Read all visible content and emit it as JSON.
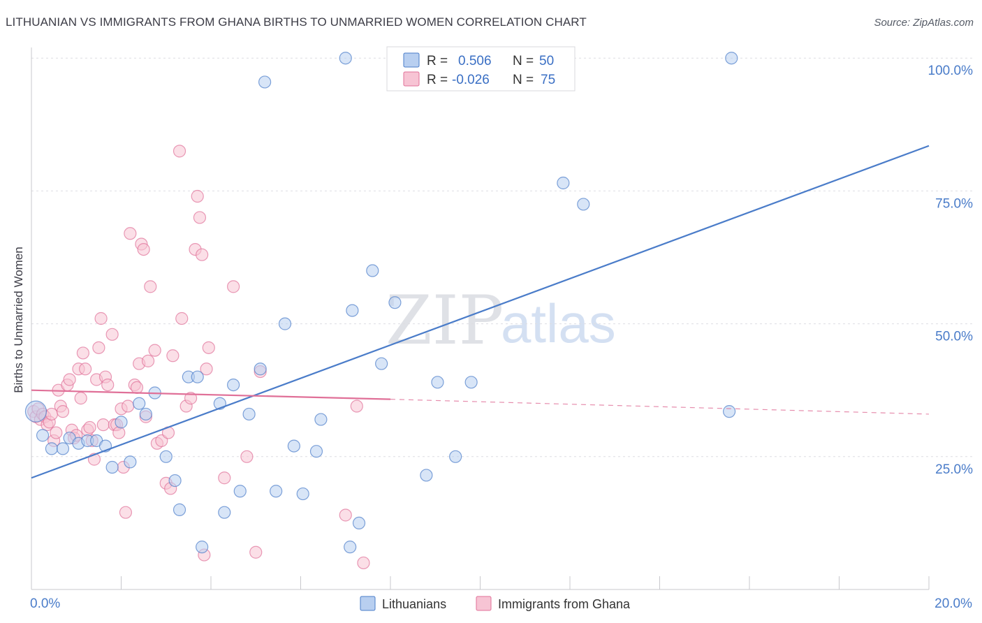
{
  "header": {
    "title": "LITHUANIAN VS IMMIGRANTS FROM GHANA BIRTHS TO UNMARRIED WOMEN CORRELATION CHART",
    "source": "Source: ZipAtlas.com"
  },
  "watermark": {
    "part1": "ZIP",
    "part2": "atlas"
  },
  "chart_data": {
    "type": "scatter",
    "title": "LITHUANIAN VS IMMIGRANTS FROM GHANA BIRTHS TO UNMARRIED WOMEN CORRELATION CHART",
    "ylabel": "Births to Unmarried Women",
    "xlabel": "",
    "xlim": [
      0,
      20
    ],
    "ylim": [
      0,
      102
    ],
    "x_tick_labels": {
      "left": "0.0%",
      "right": "20.0%"
    },
    "y_ticks": [
      {
        "value": 25,
        "label": "25.0%"
      },
      {
        "value": 50,
        "label": "50.0%"
      },
      {
        "value": 75,
        "label": "75.0%"
      },
      {
        "value": 100,
        "label": "100.0%"
      }
    ],
    "grid": true,
    "legend_position": "top-center",
    "legend": [
      {
        "series": "Lithuanians",
        "r_label": "R =",
        "r_value": "0.506",
        "n_label": "N =",
        "n_value": "50"
      },
      {
        "series": "Immigrants from Ghana",
        "r_label": "R =",
        "r_value": "-0.026",
        "n_label": "N =",
        "n_value": "75"
      }
    ],
    "series": [
      {
        "name": "Lithuanians",
        "color": "#4a7cc9",
        "fill": "#b8cff0",
        "trend": {
          "x": [
            0,
            20
          ],
          "y": [
            21,
            83.5
          ],
          "style": "solid"
        },
        "points": [
          {
            "x": 0.1,
            "y": 33.5,
            "big": true
          },
          {
            "x": 0.25,
            "y": 29
          },
          {
            "x": 0.45,
            "y": 26.5
          },
          {
            "x": 0.7,
            "y": 26.5
          },
          {
            "x": 0.85,
            "y": 28.5
          },
          {
            "x": 1.05,
            "y": 27.5
          },
          {
            "x": 1.25,
            "y": 28
          },
          {
            "x": 1.45,
            "y": 28
          },
          {
            "x": 1.65,
            "y": 27
          },
          {
            "x": 1.8,
            "y": 23
          },
          {
            "x": 2.0,
            "y": 31.5
          },
          {
            "x": 2.2,
            "y": 24
          },
          {
            "x": 2.4,
            "y": 35
          },
          {
            "x": 2.55,
            "y": 33
          },
          {
            "x": 2.75,
            "y": 37
          },
          {
            "x": 3.0,
            "y": 25
          },
          {
            "x": 3.2,
            "y": 20.5
          },
          {
            "x": 3.3,
            "y": 15
          },
          {
            "x": 3.5,
            "y": 40
          },
          {
            "x": 3.7,
            "y": 40
          },
          {
            "x": 3.8,
            "y": 8
          },
          {
            "x": 4.2,
            "y": 35
          },
          {
            "x": 4.3,
            "y": 14.5
          },
          {
            "x": 4.5,
            "y": 38.5
          },
          {
            "x": 4.65,
            "y": 18.5
          },
          {
            "x": 4.85,
            "y": 33
          },
          {
            "x": 5.1,
            "y": 41.5
          },
          {
            "x": 5.2,
            "y": 95.5
          },
          {
            "x": 5.45,
            "y": 18.5
          },
          {
            "x": 5.65,
            "y": 50
          },
          {
            "x": 5.85,
            "y": 27
          },
          {
            "x": 6.05,
            "y": 18
          },
          {
            "x": 6.35,
            "y": 26
          },
          {
            "x": 6.45,
            "y": 32
          },
          {
            "x": 7.0,
            "y": 100
          },
          {
            "x": 7.1,
            "y": 8
          },
          {
            "x": 7.15,
            "y": 52.5
          },
          {
            "x": 7.3,
            "y": 12.5
          },
          {
            "x": 7.6,
            "y": 60
          },
          {
            "x": 7.8,
            "y": 42.5
          },
          {
            "x": 8.1,
            "y": 54
          },
          {
            "x": 8.8,
            "y": 21.5
          },
          {
            "x": 9.05,
            "y": 39
          },
          {
            "x": 9.45,
            "y": 25
          },
          {
            "x": 9.8,
            "y": 39
          },
          {
            "x": 11.7,
            "y": 100
          },
          {
            "x": 11.85,
            "y": 76.5
          },
          {
            "x": 12.3,
            "y": 72.5
          },
          {
            "x": 15.55,
            "y": 33.5
          },
          {
            "x": 15.6,
            "y": 100
          }
        ]
      },
      {
        "name": "Immigrants from Ghana",
        "color": "#e07098",
        "fill": "#f7c4d4",
        "trend": {
          "x": [
            0,
            8
          ],
          "y": [
            37.5,
            35.8
          ],
          "style": "solid",
          "extension": {
            "x": [
              8,
              20
            ],
            "y": [
              35.8,
              33
            ],
            "style": "dashed"
          }
        },
        "points": [
          {
            "x": 0.05,
            "y": 33.5
          },
          {
            "x": 0.1,
            "y": 32.5
          },
          {
            "x": 0.15,
            "y": 34
          },
          {
            "x": 0.2,
            "y": 32
          },
          {
            "x": 0.25,
            "y": 33
          },
          {
            "x": 0.3,
            "y": 32.5
          },
          {
            "x": 0.35,
            "y": 31
          },
          {
            "x": 0.4,
            "y": 31.5
          },
          {
            "x": 0.45,
            "y": 33
          },
          {
            "x": 0.5,
            "y": 28
          },
          {
            "x": 0.55,
            "y": 29.5
          },
          {
            "x": 0.6,
            "y": 37.5
          },
          {
            "x": 0.65,
            "y": 34.5
          },
          {
            "x": 0.7,
            "y": 33.5
          },
          {
            "x": 0.8,
            "y": 38.5
          },
          {
            "x": 0.85,
            "y": 39.5
          },
          {
            "x": 0.9,
            "y": 30
          },
          {
            "x": 0.95,
            "y": 28.5
          },
          {
            "x": 1.0,
            "y": 29
          },
          {
            "x": 1.05,
            "y": 41.5
          },
          {
            "x": 1.1,
            "y": 36
          },
          {
            "x": 1.15,
            "y": 44.5
          },
          {
            "x": 1.2,
            "y": 41.5
          },
          {
            "x": 1.25,
            "y": 30
          },
          {
            "x": 1.3,
            "y": 30.5
          },
          {
            "x": 1.35,
            "y": 28
          },
          {
            "x": 1.4,
            "y": 24.5
          },
          {
            "x": 1.45,
            "y": 39.5
          },
          {
            "x": 1.5,
            "y": 45.5
          },
          {
            "x": 1.55,
            "y": 51
          },
          {
            "x": 1.6,
            "y": 31
          },
          {
            "x": 1.65,
            "y": 40
          },
          {
            "x": 1.7,
            "y": 38.5
          },
          {
            "x": 1.8,
            "y": 48
          },
          {
            "x": 1.85,
            "y": 31
          },
          {
            "x": 1.9,
            "y": 31
          },
          {
            "x": 1.95,
            "y": 29.5
          },
          {
            "x": 2.0,
            "y": 34
          },
          {
            "x": 2.05,
            "y": 23
          },
          {
            "x": 2.1,
            "y": 14.5
          },
          {
            "x": 2.15,
            "y": 34.5
          },
          {
            "x": 2.2,
            "y": 67
          },
          {
            "x": 2.3,
            "y": 38.5
          },
          {
            "x": 2.35,
            "y": 38
          },
          {
            "x": 2.4,
            "y": 42.5
          },
          {
            "x": 2.45,
            "y": 65
          },
          {
            "x": 2.5,
            "y": 64
          },
          {
            "x": 2.55,
            "y": 32.5
          },
          {
            "x": 2.6,
            "y": 43
          },
          {
            "x": 2.65,
            "y": 57
          },
          {
            "x": 2.75,
            "y": 45
          },
          {
            "x": 2.8,
            "y": 27.5
          },
          {
            "x": 2.9,
            "y": 28
          },
          {
            "x": 3.0,
            "y": 20
          },
          {
            "x": 3.05,
            "y": 29.5
          },
          {
            "x": 3.1,
            "y": 19
          },
          {
            "x": 3.15,
            "y": 44
          },
          {
            "x": 3.3,
            "y": 82.5
          },
          {
            "x": 3.35,
            "y": 51
          },
          {
            "x": 3.45,
            "y": 34.5
          },
          {
            "x": 3.55,
            "y": 36
          },
          {
            "x": 3.65,
            "y": 64
          },
          {
            "x": 3.7,
            "y": 74
          },
          {
            "x": 3.75,
            "y": 70
          },
          {
            "x": 3.8,
            "y": 63
          },
          {
            "x": 3.85,
            "y": 6.5
          },
          {
            "x": 3.9,
            "y": 41.5
          },
          {
            "x": 3.95,
            "y": 45.5
          },
          {
            "x": 4.3,
            "y": 21
          },
          {
            "x": 4.5,
            "y": 57
          },
          {
            "x": 4.8,
            "y": 25
          },
          {
            "x": 5.0,
            "y": 7
          },
          {
            "x": 5.1,
            "y": 41
          },
          {
            "x": 7.0,
            "y": 14
          },
          {
            "x": 7.25,
            "y": 34.5
          },
          {
            "x": 7.4,
            "y": 5
          }
        ]
      }
    ]
  },
  "bottom_legend": [
    {
      "label": "Lithuanians",
      "color": "#4a7cc9",
      "fill": "#b8cff0"
    },
    {
      "label": "Immigrants from Ghana",
      "color": "#e07098",
      "fill": "#f7c4d4"
    }
  ]
}
